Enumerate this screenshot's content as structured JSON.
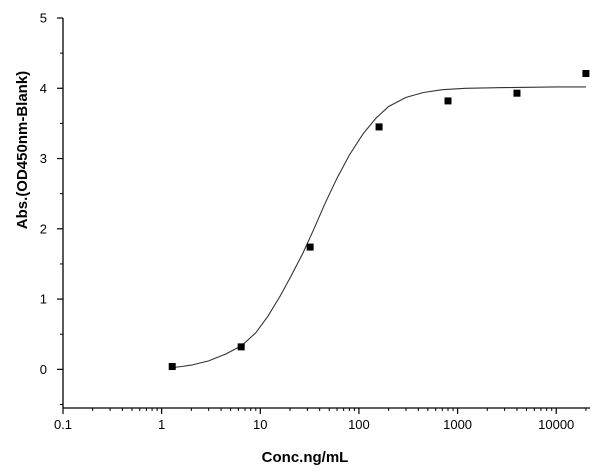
{
  "chart_data": {
    "type": "scatter",
    "x_scale": "log",
    "xlabel": "Conc.ng/mL",
    "ylabel": "Abs.(OD450nm-Blank)",
    "xlim": [
      0.1,
      22000
    ],
    "ylim": [
      -0.55,
      5
    ],
    "x_ticks": [
      0.1,
      1,
      10,
      100,
      1000,
      10000
    ],
    "x_tick_labels": [
      "0.1",
      "1",
      "10",
      "100",
      "1000",
      "10000"
    ],
    "y_ticks": [
      0,
      1,
      2,
      3,
      4,
      5
    ],
    "y_tick_labels": [
      "0",
      "1",
      "2",
      "3",
      "4",
      "5"
    ],
    "grid": false,
    "series": [
      {
        "marker": "square",
        "color": "#000000",
        "x": [
          1.28,
          6.4,
          32,
          160,
          800,
          4000,
          20000
        ],
        "y": [
          0.04,
          0.32,
          1.74,
          3.45,
          3.82,
          3.93,
          4.21
        ]
      }
    ],
    "fit_curve": {
      "type": "4PL",
      "color": "#333333",
      "points": [
        [
          1.2,
          0.02
        ],
        [
          1.6,
          0.04
        ],
        [
          2,
          0.06
        ],
        [
          3,
          0.12
        ],
        [
          4.5,
          0.22
        ],
        [
          6.5,
          0.34
        ],
        [
          9,
          0.52
        ],
        [
          12,
          0.76
        ],
        [
          16,
          1.05
        ],
        [
          20,
          1.3
        ],
        [
          27,
          1.65
        ],
        [
          35,
          2.0
        ],
        [
          45,
          2.35
        ],
        [
          60,
          2.72
        ],
        [
          80,
          3.05
        ],
        [
          110,
          3.35
        ],
        [
          150,
          3.58
        ],
        [
          200,
          3.74
        ],
        [
          300,
          3.87
        ],
        [
          450,
          3.94
        ],
        [
          700,
          3.98
        ],
        [
          1200,
          4.0
        ],
        [
          3000,
          4.01
        ],
        [
          10000,
          4.02
        ],
        [
          20000,
          4.02
        ]
      ]
    }
  }
}
